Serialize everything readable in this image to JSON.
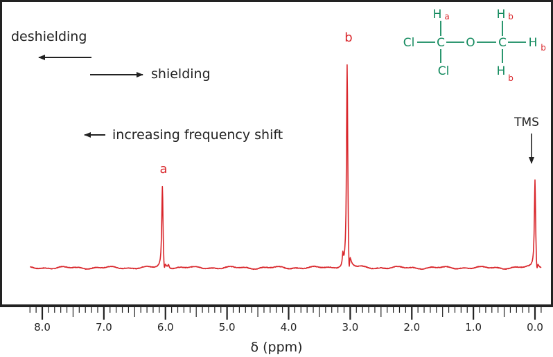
{
  "chart_data": {
    "type": "line",
    "xlabel": "δ (ppm)",
    "xlim": [
      8.2,
      -0.1
    ],
    "x_reversed": true,
    "x_ticks": [
      8.0,
      7.0,
      6.0,
      5.0,
      4.0,
      3.0,
      2.0,
      1.0,
      0.0
    ],
    "x_tick_labels": [
      "8.0",
      "7.0",
      "6.0",
      "5.0",
      "4.0",
      "3.0",
      "2.0",
      "1.0",
      "0.0"
    ],
    "x_minor_step": 0.1,
    "grid": false,
    "series": [
      {
        "color": "#d9262b",
        "peaks": [
          {
            "label": "a",
            "x": 6.05,
            "height": 0.92
          },
          {
            "label": "b",
            "x": 3.05,
            "height": 2.3
          },
          {
            "label": "TMS",
            "x": 0.0,
            "height": 1.0
          }
        ]
      }
    ],
    "annotations": {
      "deshielding": "deshielding",
      "shielding": "shielding",
      "frequency": "increasing frequency shift",
      "peak_a": "a",
      "peak_b": "b",
      "tms": "TMS"
    },
    "molecule": {
      "color": "#138a5e",
      "label_color": "#d9262b",
      "atoms": {
        "cl_left": "Cl",
        "c1": "C",
        "o": "O",
        "c2": "C",
        "cl_bottom": "Cl",
        "h_top1": "H",
        "h_top2": "H",
        "h_right": "H",
        "h_bottom": "H"
      },
      "subscripts": {
        "h_top1": "a",
        "h_top2": "b",
        "h_right": "b",
        "h_bottom": "b"
      }
    }
  }
}
